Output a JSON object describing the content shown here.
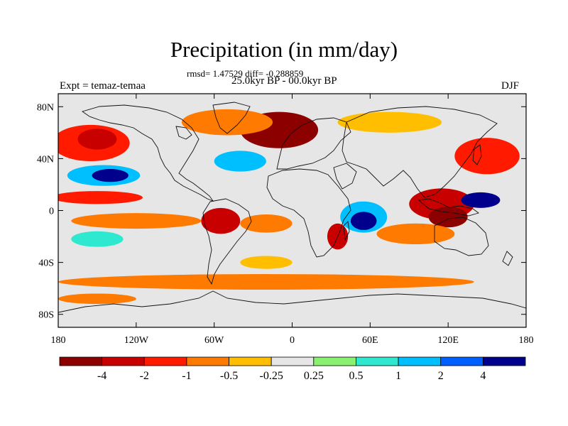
{
  "header": {
    "title": "Precipitation (in mm/day)",
    "stats": "rmsd= 1.47529 diff= -0.288859",
    "period": "25.0kyr BP - 00.0kyr BP",
    "experiment": "Expt = temaz-temaa",
    "season": "DJF"
  },
  "map": {
    "lat_ticks": [
      {
        "value": 80,
        "label": "80N"
      },
      {
        "value": 40,
        "label": "40N"
      },
      {
        "value": 0,
        "label": "0"
      },
      {
        "value": -40,
        "label": "40S"
      },
      {
        "value": -80,
        "label": "80S"
      }
    ],
    "lon_ticks": [
      {
        "value": -180,
        "label": "180"
      },
      {
        "value": -120,
        "label": "120W"
      },
      {
        "value": -60,
        "label": "60W"
      },
      {
        "value": 0,
        "label": "0"
      },
      {
        "value": 60,
        "label": "60E"
      },
      {
        "value": 120,
        "label": "120E"
      },
      {
        "value": 180,
        "label": "180"
      }
    ],
    "background_color": "#e6e6e6",
    "anomaly_regions": [
      {
        "name": "north-atlantic-dry",
        "lon": -10,
        "lat": 62,
        "rlon": 30,
        "rlat": 14,
        "level": 0
      },
      {
        "name": "north-atlantic-dry-core",
        "lon": -5,
        "lat": 66,
        "rlon": 18,
        "rlat": 8,
        "level": 0
      },
      {
        "name": "arctic-canada-dry",
        "lon": -50,
        "lat": 68,
        "rlon": 35,
        "rlat": 10,
        "level": 3
      },
      {
        "name": "north-pacific-dry",
        "lon": -155,
        "lat": 52,
        "rlon": 30,
        "rlat": 14,
        "level": 2
      },
      {
        "name": "north-pacific-dry-core",
        "lon": -150,
        "lat": 55,
        "rlon": 15,
        "rlat": 8,
        "level": 1
      },
      {
        "name": "siberia-dry",
        "lon": 75,
        "lat": 68,
        "rlon": 40,
        "rlat": 8,
        "level": 4
      },
      {
        "name": "northwest-pacific-dry",
        "lon": 150,
        "lat": 42,
        "rlon": 25,
        "rlat": 14,
        "level": 2
      },
      {
        "name": "northeast-pacific-wet",
        "lon": -145,
        "lat": 27,
        "rlon": 28,
        "rlat": 8,
        "level": 8
      },
      {
        "name": "northeast-pacific-wet-core",
        "lon": -140,
        "lat": 27,
        "rlon": 14,
        "rlat": 5,
        "level": 10
      },
      {
        "name": "north-atlantic-wet",
        "lon": -40,
        "lat": 38,
        "rlon": 20,
        "rlat": 8,
        "level": 8
      },
      {
        "name": "central-pacific-dry",
        "lon": -150,
        "lat": 10,
        "rlon": 35,
        "rlat": 5,
        "level": 2
      },
      {
        "name": "tropical-pacific-dry",
        "lon": -120,
        "lat": -8,
        "rlon": 50,
        "rlat": 6,
        "level": 3
      },
      {
        "name": "maritime-continent-dry",
        "lon": 115,
        "lat": 5,
        "rlon": 25,
        "rlat": 12,
        "level": 1
      },
      {
        "name": "maritime-continent-dry-core",
        "lon": 120,
        "lat": -5,
        "rlon": 15,
        "rlat": 8,
        "level": 0
      },
      {
        "name": "western-pacific-wet",
        "lon": 145,
        "lat": 8,
        "rlon": 15,
        "rlat": 6,
        "level": 10
      },
      {
        "name": "south-pacific-wet",
        "lon": -150,
        "lat": -22,
        "rlon": 20,
        "rlat": 6,
        "level": 7
      },
      {
        "name": "amazon-dry",
        "lon": -55,
        "lat": -8,
        "rlon": 15,
        "rlat": 10,
        "level": 1
      },
      {
        "name": "south-atlantic-dry",
        "lon": -20,
        "lat": -10,
        "rlon": 20,
        "rlat": 7,
        "level": 3
      },
      {
        "name": "indian-ocean-wet",
        "lon": 55,
        "lat": -5,
        "rlon": 18,
        "rlat": 12,
        "level": 8
      },
      {
        "name": "indian-ocean-wet-core",
        "lon": 55,
        "lat": -8,
        "rlon": 10,
        "rlat": 7,
        "level": 10
      },
      {
        "name": "southern-africa-dry",
        "lon": 35,
        "lat": -20,
        "rlon": 8,
        "rlat": 10,
        "level": 1
      },
      {
        "name": "south-indian-dry",
        "lon": 95,
        "lat": -18,
        "rlon": 30,
        "rlat": 8,
        "level": 3
      },
      {
        "name": "southern-ocean-dry",
        "lon": -20,
        "lat": -55,
        "rlon": 160,
        "rlat": 6,
        "level": 3
      },
      {
        "name": "south-atlantic-subtropics-dry",
        "lon": -20,
        "lat": -40,
        "rlon": 20,
        "rlat": 5,
        "level": 4
      },
      {
        "name": "antarctic-coast-dry",
        "lon": -150,
        "lat": -68,
        "rlon": 30,
        "rlat": 4,
        "level": 3
      }
    ]
  },
  "colorbar": {
    "colors": [
      "#8c0000",
      "#c80000",
      "#ff1a00",
      "#ff7a00",
      "#ffbe00",
      "#e6e6e6",
      "#8af070",
      "#2ee8d0",
      "#00bfff",
      "#0060ff",
      "#00008c"
    ],
    "labels": [
      "-4",
      "-2",
      "-1",
      "-0.5",
      "-0.25",
      "0.25",
      "0.5",
      "1",
      "2",
      "4"
    ]
  }
}
